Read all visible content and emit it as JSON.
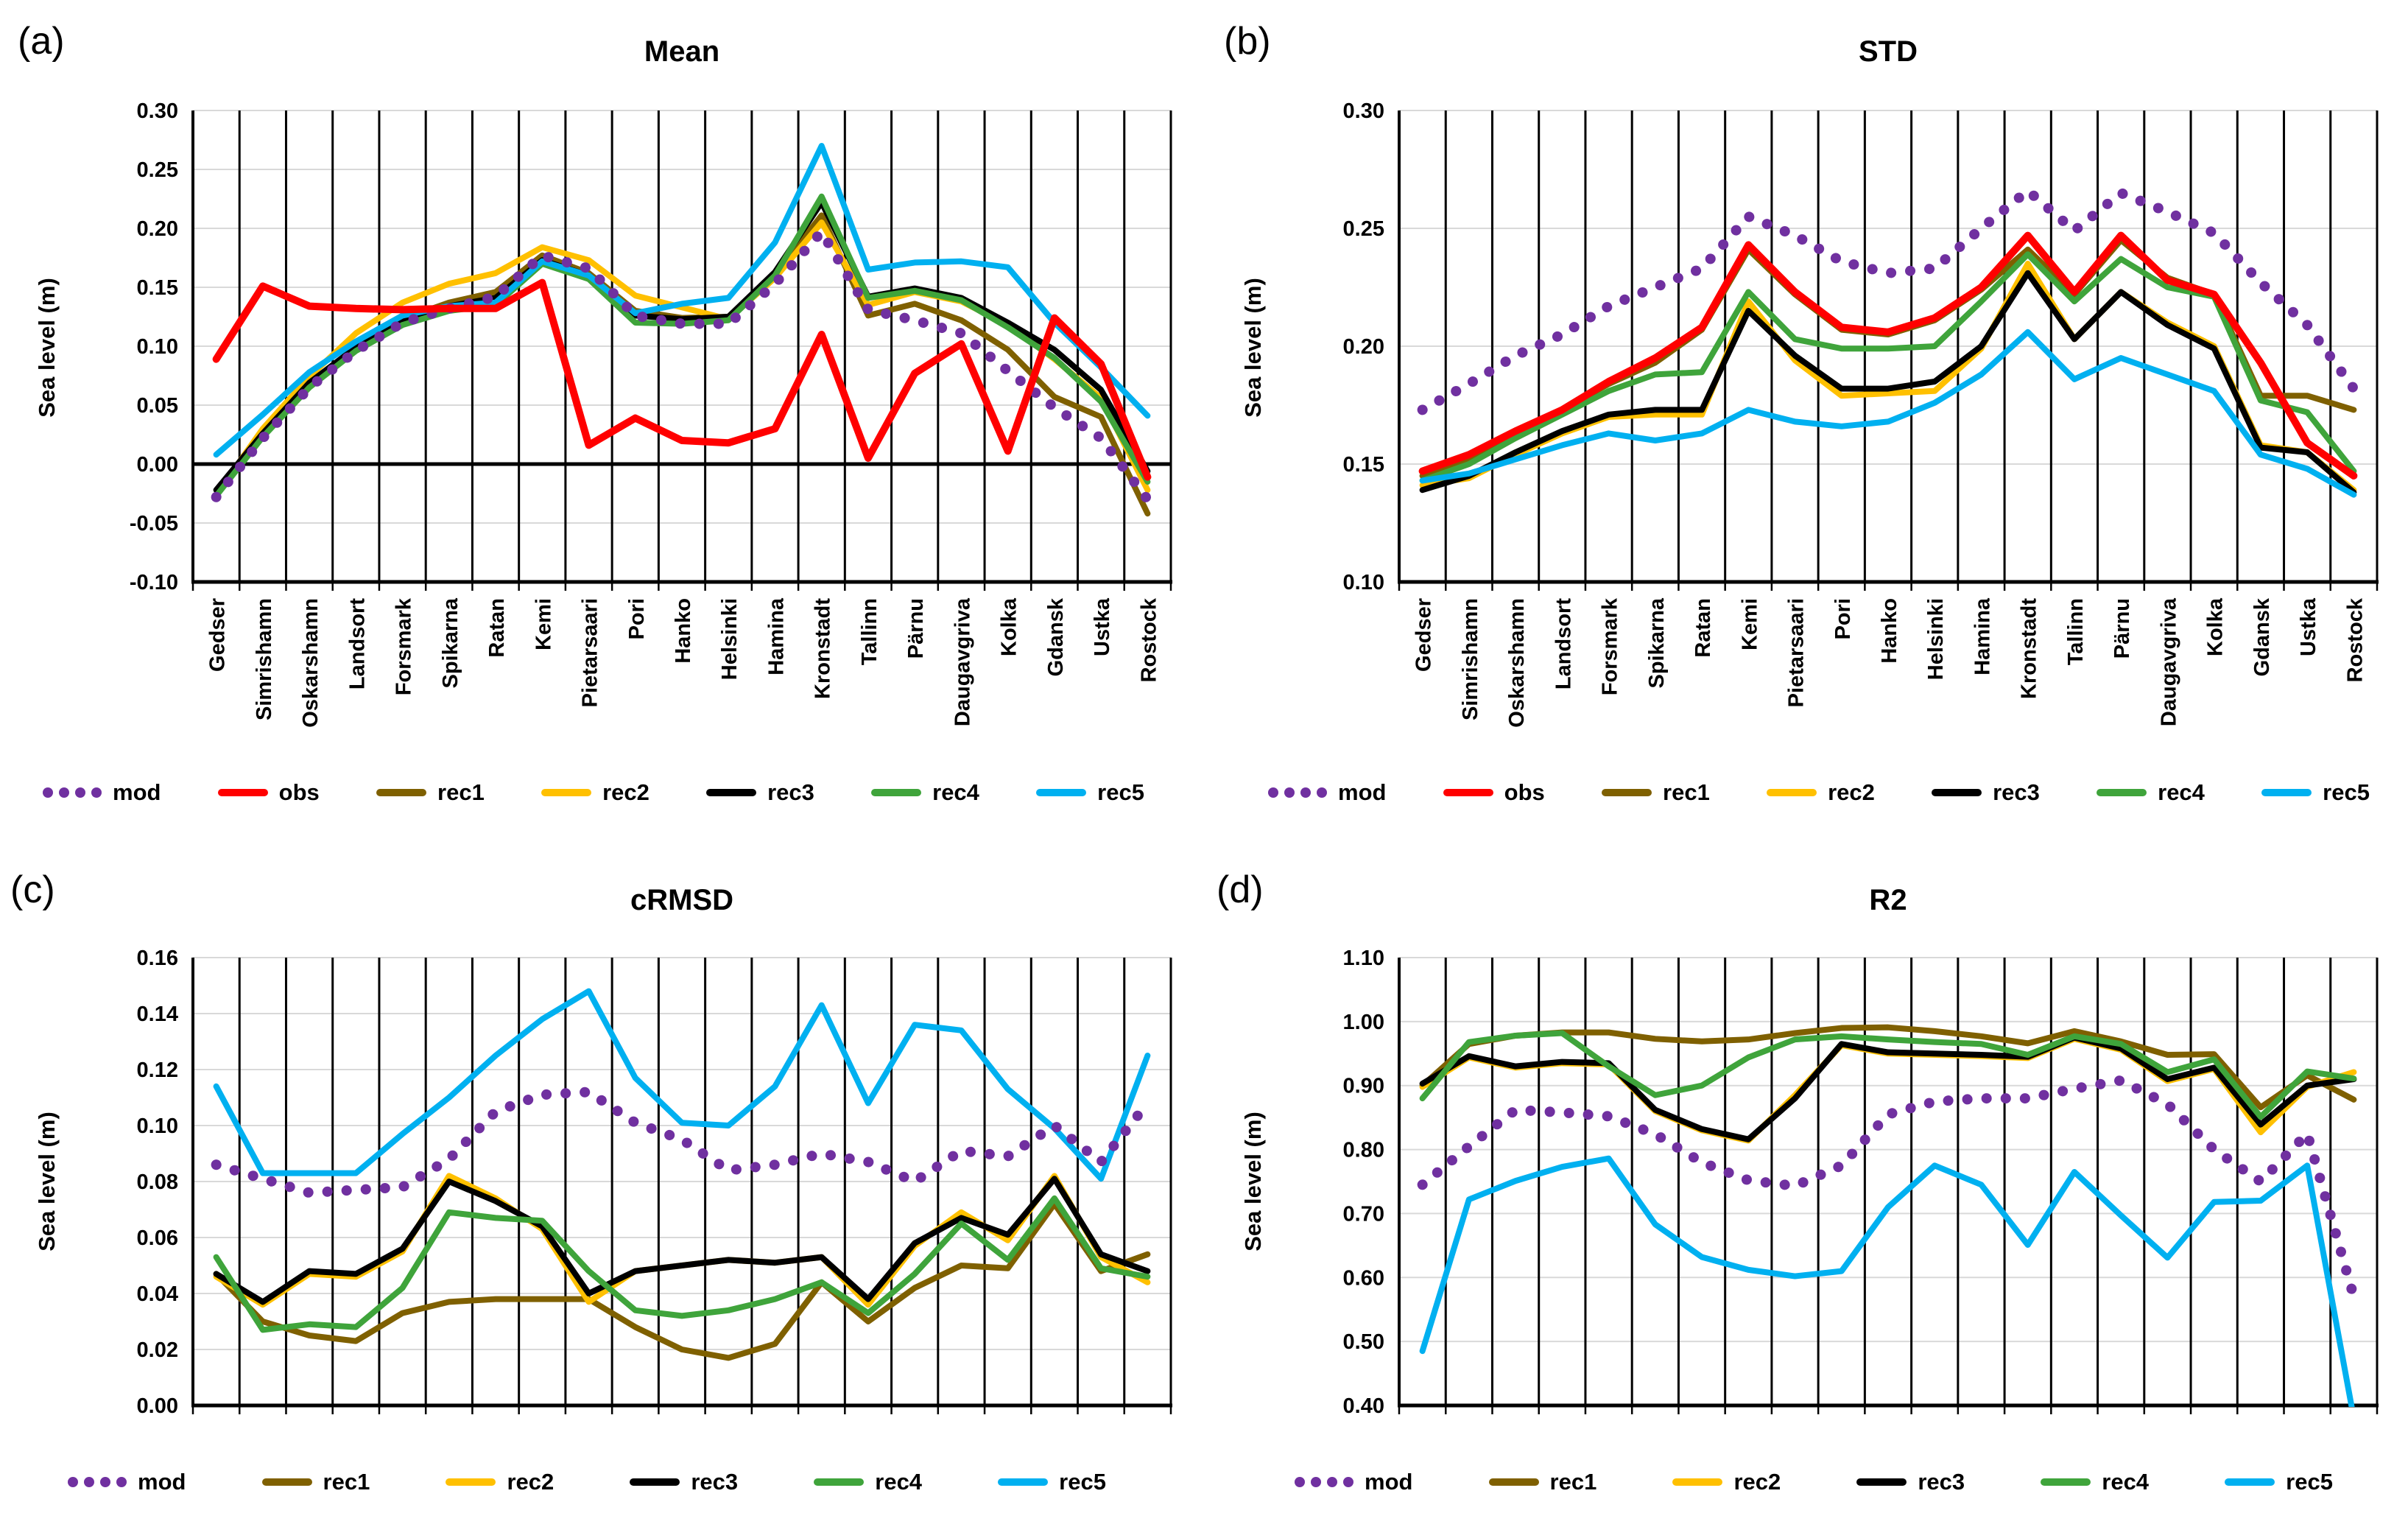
{
  "figure": {
    "panels": [
      {
        "id": "a",
        "corner": "(a)",
        "title": "Mean",
        "ylabel": "Sea level (m)"
      },
      {
        "id": "b",
        "corner": "(b)",
        "title": "STD",
        "ylabel": "Sea level (m)"
      },
      {
        "id": "c",
        "corner": "(c)",
        "title": "cRMSD",
        "ylabel": "Sea level (m)"
      },
      {
        "id": "d",
        "corner": "(d)",
        "title": "R2",
        "ylabel": "Sea level (m)"
      }
    ],
    "stations": [
      "Gedser",
      "Simrishamn",
      "Oskarshamn",
      "Landsort",
      "Forsmark",
      "Spikarna",
      "Ratan",
      "Kemi",
      "Pietarsaari",
      "Pori",
      "Hanko",
      "Helsinki",
      "Hamina",
      "Kronstadt",
      "Tallinn",
      "Pärnu",
      "Daugavgriva",
      "Kolka",
      "Gdansk",
      "Ustka",
      "Rostock"
    ],
    "series_colors": {
      "mod": "#7030A0",
      "obs": "#FF0000",
      "rec1": "#7F6000",
      "rec2": "#FFC000",
      "rec3": "#000000",
      "rec4": "#3FA43B",
      "rec5": "#00B0F0"
    },
    "gridline_color": "#D9D9D9",
    "legends": {
      "top": [
        {
          "key": "mod",
          "label": "mod"
        },
        {
          "key": "obs",
          "label": "obs"
        },
        {
          "key": "rec1",
          "label": "rec1"
        },
        {
          "key": "rec2",
          "label": "rec2"
        },
        {
          "key": "rec3",
          "label": "rec3"
        },
        {
          "key": "rec4",
          "label": "rec4"
        },
        {
          "key": "rec5",
          "label": "rec5"
        }
      ],
      "bottom": [
        {
          "key": "mod",
          "label": "mod"
        },
        {
          "key": "rec1",
          "label": "rec1"
        },
        {
          "key": "rec2",
          "label": "rec2"
        },
        {
          "key": "rec3",
          "label": "rec3"
        },
        {
          "key": "rec4",
          "label": "rec4"
        },
        {
          "key": "rec5",
          "label": "rec5"
        }
      ]
    }
  },
  "chart_data": [
    {
      "id": "a",
      "type": "line",
      "title": "Mean",
      "ylabel": "Sea level (m)",
      "ylim": [
        -0.1,
        0.3
      ],
      "ystep": 0.05,
      "zero_line": true,
      "grid": true,
      "legend_position": "bottom",
      "categories": [
        "Gedser",
        "Simrishamn",
        "Oskarshamn",
        "Landsort",
        "Forsmark",
        "Spikarna",
        "Ratan",
        "Kemi",
        "Pietarsaari",
        "Pori",
        "Hanko",
        "Helsinki",
        "Hamina",
        "Kronstadt",
        "Tallinn",
        "Pärnu",
        "Daugavgriva",
        "Kolka",
        "Gdansk",
        "Ustka",
        "Rostock"
      ],
      "series": [
        {
          "name": "mod",
          "style": "dotted",
          "values": [
            -0.028,
            0.022,
            0.065,
            0.096,
            0.12,
            0.132,
            0.142,
            0.177,
            0.166,
            0.126,
            0.119,
            0.119,
            0.153,
            0.197,
            0.131,
            0.122,
            0.111,
            0.079,
            0.048,
            0.022,
            -0.03
          ]
        },
        {
          "name": "obs",
          "style": "solid",
          "values": [
            0.089,
            0.151,
            0.134,
            0.132,
            0.131,
            0.132,
            0.132,
            0.154,
            0.016,
            0.039,
            0.02,
            0.018,
            0.03,
            0.11,
            0.005,
            0.077,
            0.102,
            0.011,
            0.124,
            0.085,
            -0.011
          ]
        },
        {
          "name": "rec1",
          "style": "solid",
          "values": [
            -0.026,
            0.024,
            0.068,
            0.097,
            0.123,
            0.137,
            0.146,
            0.177,
            0.162,
            0.13,
            0.124,
            0.125,
            0.161,
            0.211,
            0.126,
            0.136,
            0.122,
            0.097,
            0.057,
            0.04,
            -0.042
          ]
        },
        {
          "name": "rec2",
          "style": "solid",
          "values": [
            -0.026,
            0.03,
            0.074,
            0.111,
            0.137,
            0.153,
            0.162,
            0.184,
            0.173,
            0.143,
            0.133,
            0.123,
            0.158,
            0.205,
            0.135,
            0.146,
            0.138,
            0.118,
            0.089,
            0.056,
            -0.022
          ]
        },
        {
          "name": "rec3",
          "style": "solid",
          "values": [
            -0.022,
            0.026,
            0.069,
            0.099,
            0.122,
            0.134,
            0.141,
            0.173,
            0.16,
            0.126,
            0.123,
            0.125,
            0.163,
            0.222,
            0.142,
            0.149,
            0.141,
            0.12,
            0.097,
            0.063,
            -0.006
          ]
        },
        {
          "name": "rec4",
          "style": "solid",
          "values": [
            -0.027,
            0.023,
            0.065,
            0.096,
            0.118,
            0.13,
            0.135,
            0.17,
            0.157,
            0.12,
            0.119,
            0.122,
            0.16,
            0.227,
            0.141,
            0.147,
            0.139,
            0.116,
            0.09,
            0.053,
            -0.015
          ]
        },
        {
          "name": "rec5",
          "style": "solid",
          "values": [
            0.008,
            0.042,
            0.078,
            0.104,
            0.126,
            0.134,
            0.137,
            0.172,
            0.16,
            0.128,
            0.136,
            0.141,
            0.188,
            0.27,
            0.165,
            0.171,
            0.172,
            0.167,
            0.12,
            0.082,
            0.041
          ]
        }
      ]
    },
    {
      "id": "b",
      "type": "line",
      "title": "STD",
      "ylabel": "Sea level (m)",
      "ylim": [
        0.1,
        0.3
      ],
      "ystep": 0.05,
      "zero_line": false,
      "grid": true,
      "legend_position": "bottom",
      "categories": [
        "Gedser",
        "Simrishamn",
        "Oskarshamn",
        "Landsort",
        "Forsmark",
        "Spikarna",
        "Ratan",
        "Kemi",
        "Pietarsaari",
        "Pori",
        "Hanko",
        "Helsinki",
        "Hamina",
        "Kronstadt",
        "Tallinn",
        "Pärnu",
        "Daugavgriva",
        "Kolka",
        "Gdansk",
        "Ustka",
        "Rostock"
      ],
      "series": [
        {
          "name": "mod",
          "style": "dotted",
          "values": [
            0.173,
            0.184,
            0.196,
            0.205,
            0.217,
            0.225,
            0.233,
            0.255,
            0.247,
            0.236,
            0.231,
            0.233,
            0.25,
            0.266,
            0.249,
            0.265,
            0.257,
            0.248,
            0.227,
            0.209,
            0.182
          ]
        },
        {
          "name": "obs",
          "style": "solid",
          "values": [
            0.147,
            0.154,
            0.164,
            0.173,
            0.185,
            0.195,
            0.208,
            0.243,
            0.223,
            0.208,
            0.206,
            0.212,
            0.225,
            0.247,
            0.223,
            0.247,
            0.228,
            0.222,
            0.193,
            0.159,
            0.145
          ]
        },
        {
          "name": "rec1",
          "style": "solid",
          "values": [
            0.145,
            0.152,
            0.163,
            0.173,
            0.184,
            0.193,
            0.207,
            0.241,
            0.222,
            0.207,
            0.205,
            0.211,
            0.224,
            0.241,
            0.222,
            0.245,
            0.229,
            0.222,
            0.179,
            0.179,
            0.173
          ]
        },
        {
          "name": "rec2",
          "style": "solid",
          "values": [
            0.141,
            0.144,
            0.154,
            0.163,
            0.17,
            0.171,
            0.171,
            0.219,
            0.194,
            0.179,
            0.18,
            0.181,
            0.199,
            0.235,
            0.203,
            0.223,
            0.21,
            0.2,
            0.158,
            0.155,
            0.139
          ]
        },
        {
          "name": "rec3",
          "style": "solid",
          "values": [
            0.139,
            0.145,
            0.155,
            0.164,
            0.171,
            0.173,
            0.173,
            0.215,
            0.196,
            0.182,
            0.182,
            0.185,
            0.2,
            0.231,
            0.203,
            0.223,
            0.209,
            0.199,
            0.157,
            0.155,
            0.138
          ]
        },
        {
          "name": "rec4",
          "style": "solid",
          "values": [
            0.143,
            0.15,
            0.161,
            0.171,
            0.181,
            0.188,
            0.189,
            0.223,
            0.203,
            0.199,
            0.199,
            0.2,
            0.219,
            0.239,
            0.219,
            0.237,
            0.225,
            0.221,
            0.177,
            0.172,
            0.147
          ]
        },
        {
          "name": "rec5",
          "style": "solid",
          "values": [
            0.143,
            0.146,
            0.152,
            0.158,
            0.163,
            0.16,
            0.163,
            0.173,
            0.168,
            0.166,
            0.168,
            0.176,
            0.188,
            0.206,
            0.186,
            0.195,
            0.188,
            0.181,
            0.154,
            0.148,
            0.137
          ]
        }
      ]
    },
    {
      "id": "c",
      "type": "line",
      "title": "cRMSD",
      "ylabel": "Sea level (m)",
      "ylim": [
        0.0,
        0.16
      ],
      "ystep": 0.02,
      "zero_line": false,
      "grid": true,
      "legend_position": "bottom",
      "categories": [
        "Gedser",
        "Simrishamn",
        "Oskarshamn",
        "Landsort",
        "Forsmark",
        "Spikarna",
        "Ratan",
        "Kemi",
        "Pietarsaari",
        "Pori",
        "Hanko",
        "Helsinki",
        "Hamina",
        "Kronstadt",
        "Tallinn",
        "Pärnu",
        "Daugavgriva",
        "Kolka",
        "Gdansk",
        "Ustka",
        "Rostock"
      ],
      "series": [
        {
          "name": "mod",
          "style": "dotted",
          "values": [
            0.086,
            0.081,
            0.076,
            0.077,
            0.078,
            0.088,
            0.105,
            0.111,
            0.112,
            0.101,
            0.095,
            0.084,
            0.086,
            0.09,
            0.087,
            0.08,
            0.091,
            0.089,
            0.1,
            0.087,
            0.108
          ]
        },
        {
          "name": "rec1",
          "style": "solid",
          "values": [
            0.047,
            0.03,
            0.025,
            0.023,
            0.033,
            0.037,
            0.038,
            0.038,
            0.038,
            0.028,
            0.02,
            0.017,
            0.022,
            0.044,
            0.03,
            0.042,
            0.05,
            0.049,
            0.072,
            0.048,
            0.054
          ]
        },
        {
          "name": "rec2",
          "style": "solid",
          "values": [
            0.046,
            0.036,
            0.047,
            0.046,
            0.055,
            0.082,
            0.074,
            0.063,
            0.037,
            0.048,
            0.05,
            0.052,
            0.051,
            0.053,
            0.036,
            0.057,
            0.069,
            0.059,
            0.082,
            0.053,
            0.044
          ]
        },
        {
          "name": "rec3",
          "style": "solid",
          "values": [
            0.047,
            0.037,
            0.048,
            0.047,
            0.056,
            0.08,
            0.073,
            0.064,
            0.04,
            0.048,
            0.05,
            0.052,
            0.051,
            0.053,
            0.038,
            0.058,
            0.067,
            0.061,
            0.081,
            0.054,
            0.048
          ]
        },
        {
          "name": "rec4",
          "style": "solid",
          "values": [
            0.053,
            0.027,
            0.029,
            0.028,
            0.042,
            0.069,
            0.067,
            0.066,
            0.048,
            0.034,
            0.032,
            0.034,
            0.038,
            0.044,
            0.033,
            0.047,
            0.065,
            0.052,
            0.074,
            0.049,
            0.046
          ]
        },
        {
          "name": "rec5",
          "style": "solid",
          "values": [
            0.114,
            0.083,
            0.083,
            0.083,
            0.097,
            0.11,
            0.125,
            0.138,
            0.148,
            0.117,
            0.101,
            0.1,
            0.114,
            0.143,
            0.108,
            0.136,
            0.134,
            0.113,
            0.099,
            0.081,
            0.125
          ]
        }
      ]
    },
    {
      "id": "d",
      "type": "line",
      "title": "R2",
      "ylabel": "Sea level (m)",
      "ylim": [
        0.4,
        1.1
      ],
      "ystep": 0.1,
      "zero_line": false,
      "grid": true,
      "legend_position": "bottom",
      "categories": [
        "Gedser",
        "Simrishamn",
        "Oskarshamn",
        "Landsort",
        "Forsmark",
        "Spikarna",
        "Ratan",
        "Kemi",
        "Pietarsaari",
        "Pori",
        "Hanko",
        "Helsinki",
        "Hamina",
        "Kronstadt",
        "Tallinn",
        "Pärnu",
        "Daugavgriva",
        "Kolka",
        "Gdansk",
        "Ustka",
        "Rostock"
      ],
      "series": [
        {
          "name": "mod",
          "style": "dotted",
          "values": [
            0.745,
            0.805,
            0.862,
            0.858,
            0.852,
            0.824,
            0.78,
            0.752,
            0.743,
            0.775,
            0.855,
            0.875,
            0.88,
            0.88,
            0.895,
            0.908,
            0.871,
            0.8,
            0.75,
            0.825,
            0.57
          ]
        },
        {
          "name": "rec1",
          "style": "solid",
          "values": [
            0.9,
            0.965,
            0.978,
            0.983,
            0.983,
            0.973,
            0.969,
            0.972,
            0.982,
            0.99,
            0.991,
            0.985,
            0.977,
            0.966,
            0.985,
            0.969,
            0.948,
            0.949,
            0.866,
            0.916,
            0.878
          ]
        },
        {
          "name": "rec2",
          "style": "solid",
          "values": [
            0.898,
            0.944,
            0.928,
            0.935,
            0.933,
            0.86,
            0.83,
            0.814,
            0.885,
            0.963,
            0.95,
            0.948,
            0.946,
            0.943,
            0.973,
            0.956,
            0.907,
            0.926,
            0.827,
            0.898,
            0.921
          ]
        },
        {
          "name": "rec3",
          "style": "solid",
          "values": [
            0.903,
            0.946,
            0.93,
            0.937,
            0.935,
            0.862,
            0.832,
            0.816,
            0.88,
            0.965,
            0.952,
            0.95,
            0.948,
            0.945,
            0.975,
            0.958,
            0.91,
            0.928,
            0.839,
            0.9,
            0.91
          ]
        },
        {
          "name": "rec4",
          "style": "solid",
          "values": [
            0.88,
            0.968,
            0.978,
            0.982,
            0.93,
            0.885,
            0.9,
            0.944,
            0.972,
            0.977,
            0.972,
            0.968,
            0.965,
            0.948,
            0.977,
            0.965,
            0.921,
            0.941,
            0.851,
            0.922,
            0.911
          ]
        },
        {
          "name": "rec5",
          "style": "solid",
          "values": [
            0.485,
            0.722,
            0.751,
            0.773,
            0.786,
            0.683,
            0.632,
            0.612,
            0.602,
            0.61,
            0.71,
            0.775,
            0.745,
            0.651,
            0.765,
            0.697,
            0.631,
            0.718,
            0.72,
            0.775,
            0.38
          ]
        }
      ]
    }
  ]
}
